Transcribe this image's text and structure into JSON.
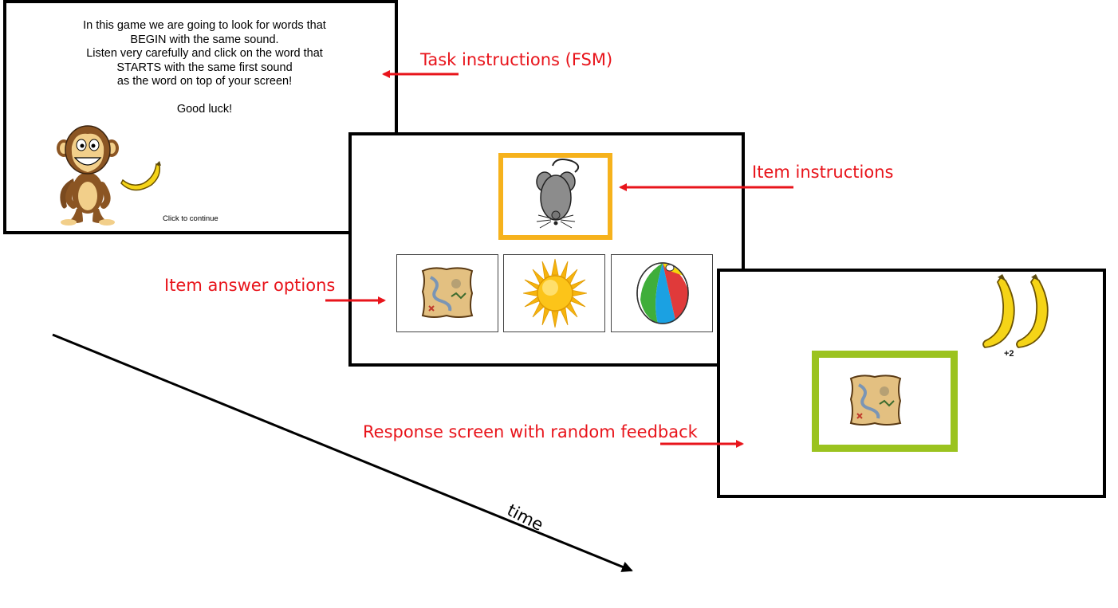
{
  "task_screen": {
    "instruction_lines": [
      "In this game we are going to look for words that",
      "BEGIN with the same sound.",
      "Listen very carefully and click on the word that",
      "STARTS with the same first sound",
      "as the word on top of your screen!"
    ],
    "good_luck": "Good luck!",
    "click_to_continue": "Click to continue"
  },
  "item_screen": {
    "target_icon": "mouse-icon",
    "options": [
      "map-icon",
      "sun-icon",
      "beach-ball-icon"
    ],
    "target_border_color": "#f6b21c"
  },
  "response_screen": {
    "selected_icon": "map-icon",
    "points_label": "+2",
    "feedback_border_color": "#9bc31f"
  },
  "labels": {
    "task_instructions": "Task instructions (FSM)",
    "item_instructions": "Item instructions",
    "item_answer_options": "Item answer options",
    "response_screen": "Response screen with random feedback",
    "time_axis": "time"
  },
  "colors": {
    "annotation": "#e8141b",
    "timeline": "#000000"
  }
}
